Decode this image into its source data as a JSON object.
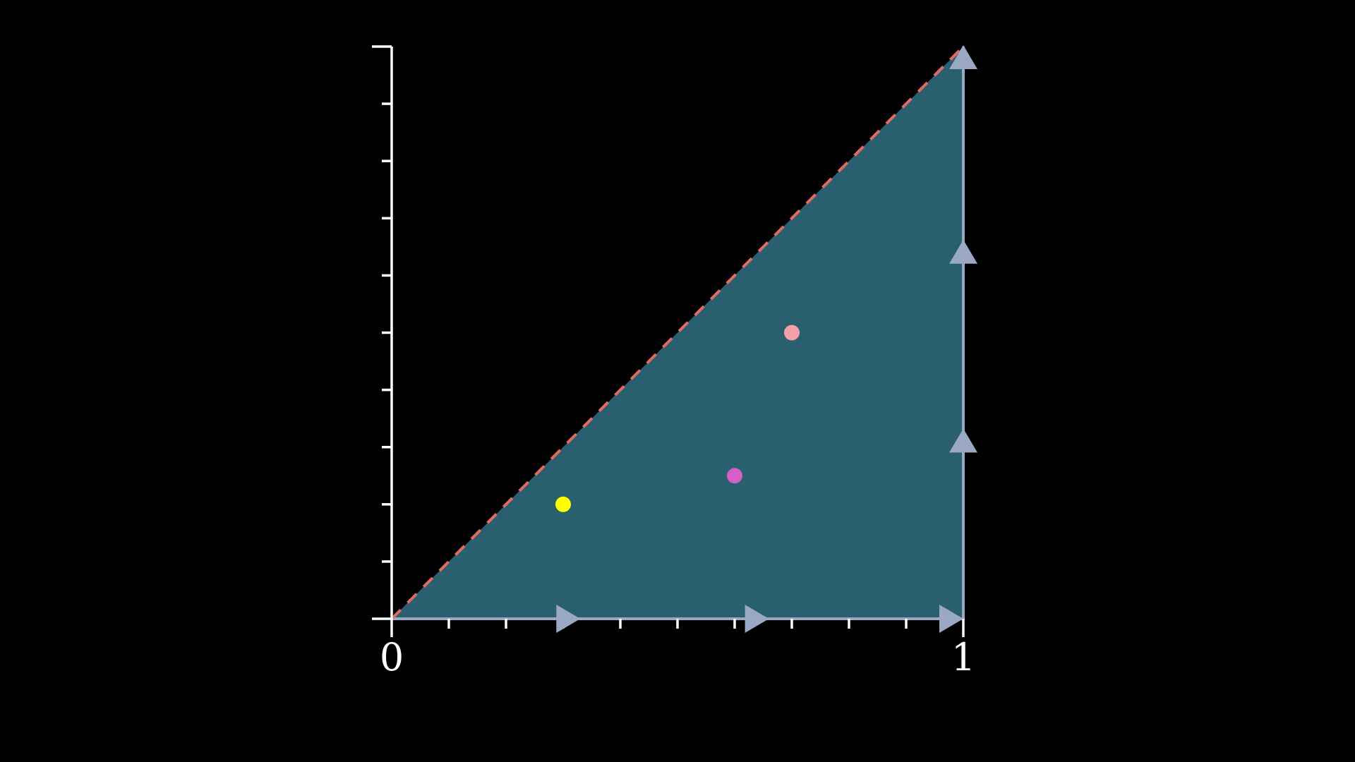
{
  "diagram": {
    "x_axis": {
      "range": [
        0,
        1
      ],
      "tick_count": 10,
      "tick_labels": [
        {
          "value": 0,
          "text": "0"
        },
        {
          "value": 1,
          "text": "1"
        }
      ]
    },
    "y_axis": {
      "range": [
        0,
        1
      ],
      "tick_count": 10
    },
    "region": {
      "shape": "triangle",
      "vertices": [
        [
          0,
          0
        ],
        [
          1,
          0
        ],
        [
          1,
          1
        ]
      ],
      "fill_color": "#2a5f70",
      "diagonal_color": "#e06c60",
      "diagonal_style": "dashed",
      "boundary_color": "#9aa8c4"
    },
    "bottom_edge_arrows": [
      0.33,
      0.66,
      1.0
    ],
    "right_edge_arrows": [
      0.33,
      0.66,
      1.0
    ],
    "points": [
      {
        "name": "yellow-point",
        "x": 0.3,
        "y": 0.2,
        "color": "#ffff00"
      },
      {
        "name": "magenta-point",
        "x": 0.6,
        "y": 0.25,
        "color": "#d45fc6"
      },
      {
        "name": "pink-point",
        "x": 0.7,
        "y": 0.5,
        "color": "#f4a0a8"
      }
    ],
    "axis_color": "#ffffff"
  }
}
